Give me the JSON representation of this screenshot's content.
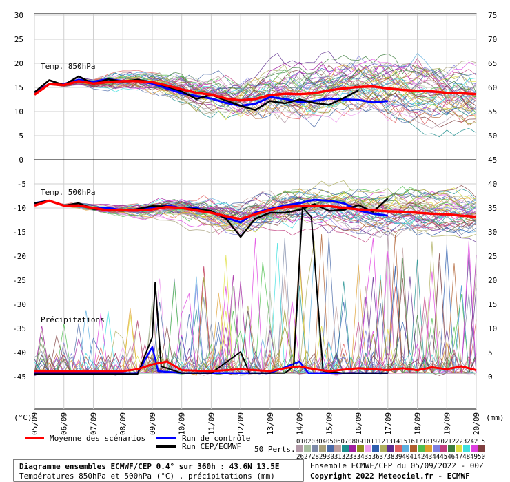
{
  "chart_data": {
    "type": "line",
    "panels": {
      "t850": {
        "label": "Temp. 850hPa",
        "left_ticks": [
          30,
          25,
          20,
          15,
          10,
          5,
          0
        ],
        "right_ticks": [
          75,
          70,
          65,
          60,
          55,
          50,
          45
        ],
        "ylim": [
          0,
          30
        ]
      },
      "t500": {
        "label": "Temp. 500hPa",
        "left_ticks": [
          -5,
          -10,
          -15,
          -20,
          -25,
          -30,
          -35,
          -40,
          -45
        ],
        "right_ticks": [
          40,
          35,
          30,
          25,
          20,
          15,
          10,
          5,
          0
        ],
        "ylim": [
          -45,
          0
        ]
      },
      "precip": {
        "label": "Précipitations",
        "right_ticks": [
          20,
          15,
          10,
          5,
          0
        ],
        "ylim": [
          0,
          25
        ]
      }
    },
    "dates": [
      "05/09",
      "06/09",
      "07/09",
      "08/09",
      "09/09",
      "10/09",
      "11/09",
      "12/09",
      "13/09",
      "14/09",
      "15/09",
      "16/09",
      "17/09",
      "18/09",
      "19/09",
      "20/09"
    ],
    "unit_left": "(°C)",
    "unit_right": "(mm)",
    "series": [
      {
        "name": "Moyenne des scénarios",
        "color": "#ff0000",
        "t850": [
          [
            0,
            13.5
          ],
          [
            0.5,
            15.7
          ],
          [
            1,
            15.5
          ],
          [
            1.5,
            16.3
          ],
          [
            2,
            15.8
          ],
          [
            2.5,
            16.1
          ],
          [
            3,
            16.3
          ],
          [
            3.5,
            16.3
          ],
          [
            4,
            16.1
          ],
          [
            4.5,
            15.4
          ],
          [
            5,
            14.6
          ],
          [
            5.5,
            13.9
          ],
          [
            6,
            13.5
          ],
          [
            6.5,
            12.7
          ],
          [
            7,
            12.3
          ],
          [
            7.5,
            12.6
          ],
          [
            8,
            13.4
          ],
          [
            8.5,
            13.7
          ],
          [
            9,
            13.6
          ],
          [
            9.5,
            13.8
          ],
          [
            10,
            14.4
          ],
          [
            10.5,
            14.8
          ],
          [
            11,
            15.1
          ],
          [
            11.5,
            15.2
          ],
          [
            12,
            14.8
          ],
          [
            12.5,
            14.5
          ],
          [
            13,
            14.3
          ],
          [
            13.5,
            14.2
          ],
          [
            14,
            13.9
          ],
          [
            14.5,
            13.8
          ],
          [
            15,
            13.6
          ]
        ],
        "t500": [
          [
            0,
            -9.5
          ],
          [
            0.5,
            -8.5
          ],
          [
            1,
            -9.5
          ],
          [
            1.5,
            -9.5
          ],
          [
            2,
            -10
          ],
          [
            2.5,
            -10.5
          ],
          [
            3,
            -10.5
          ],
          [
            3.5,
            -10.5
          ],
          [
            4,
            -10.3
          ],
          [
            4.5,
            -9.8
          ],
          [
            5,
            -10
          ],
          [
            5.5,
            -10.5
          ],
          [
            6,
            -11
          ],
          [
            6.5,
            -11.7
          ],
          [
            7,
            -12.3
          ],
          [
            7.5,
            -11.3
          ],
          [
            8,
            -10.4
          ],
          [
            8.5,
            -9.8
          ],
          [
            9,
            -9.6
          ],
          [
            9.5,
            -9.6
          ],
          [
            10,
            -9.6
          ],
          [
            10.5,
            -10
          ],
          [
            11,
            -10.3
          ],
          [
            11.5,
            -10.5
          ],
          [
            12,
            -10.7
          ],
          [
            12.5,
            -10.8
          ],
          [
            13,
            -11
          ],
          [
            13.5,
            -11.2
          ],
          [
            14,
            -11.3
          ],
          [
            14.5,
            -11.6
          ],
          [
            15,
            -11.8
          ]
        ],
        "precip": [
          [
            0,
            0.5
          ],
          [
            2,
            0.5
          ],
          [
            3,
            0.5
          ],
          [
            3.5,
            0.7
          ],
          [
            4,
            1.2
          ],
          [
            4.5,
            1.5
          ],
          [
            5,
            0.6
          ],
          [
            6,
            0.5
          ],
          [
            7,
            0.7
          ],
          [
            8,
            0.5
          ],
          [
            8.5,
            0.8
          ],
          [
            9,
            1
          ],
          [
            9.5,
            0.7
          ],
          [
            10,
            0.5
          ],
          [
            11,
            0.8
          ],
          [
            12,
            0.6
          ],
          [
            12.5,
            0.8
          ],
          [
            13,
            0.6
          ],
          [
            13.5,
            0.9
          ],
          [
            14,
            0.7
          ],
          [
            14.5,
            1
          ],
          [
            15,
            0.6
          ]
        ]
      },
      {
        "name": "Run de contrôle",
        "color": "#0000ff",
        "t850": [
          [
            0,
            14
          ],
          [
            0.5,
            15.7
          ],
          [
            1,
            15.7
          ],
          [
            1.5,
            16.6
          ],
          [
            2,
            16.2
          ],
          [
            2.5,
            16.7
          ],
          [
            3,
            16.3
          ],
          [
            3.5,
            16.4
          ],
          [
            4,
            15.8
          ],
          [
            4.5,
            14.8
          ],
          [
            5,
            13.8
          ],
          [
            5.5,
            13.2
          ],
          [
            6,
            12.7
          ],
          [
            6.5,
            11.8
          ],
          [
            7,
            11.2
          ],
          [
            7.5,
            11.6
          ],
          [
            8,
            13
          ],
          [
            8.5,
            12.6
          ],
          [
            9,
            12
          ],
          [
            9.5,
            12.2
          ],
          [
            10,
            12.7
          ],
          [
            10.5,
            12.5
          ],
          [
            11,
            12.4
          ],
          [
            11.5,
            11.9
          ],
          [
            12,
            12.2
          ]
        ],
        "t500": [
          [
            0,
            -9
          ],
          [
            0.5,
            -8.5
          ],
          [
            1,
            -9.5
          ],
          [
            1.5,
            -9.5
          ],
          [
            2,
            -10
          ],
          [
            2.5,
            -10
          ],
          [
            3,
            -10.5
          ],
          [
            3.5,
            -10.5
          ],
          [
            4,
            -10
          ],
          [
            4.5,
            -9.5
          ],
          [
            5,
            -10
          ],
          [
            5.5,
            -10
          ],
          [
            6,
            -11
          ],
          [
            6.5,
            -12
          ],
          [
            7,
            -13
          ],
          [
            7.5,
            -11
          ],
          [
            8,
            -10.2
          ],
          [
            8.5,
            -9.5
          ],
          [
            9,
            -9
          ],
          [
            9.5,
            -8.3
          ],
          [
            10,
            -8.5
          ],
          [
            10.5,
            -9
          ],
          [
            11,
            -10.5
          ],
          [
            11.5,
            -11.2
          ],
          [
            12,
            -11.6
          ]
        ],
        "precip": [
          [
            0,
            0.3
          ],
          [
            3.5,
            0.3
          ],
          [
            4,
            3
          ],
          [
            4.2,
            0.5
          ],
          [
            5,
            0.3
          ],
          [
            6,
            0.3
          ],
          [
            8,
            0.3
          ],
          [
            9,
            1.5
          ],
          [
            9.3,
            0.3
          ],
          [
            10,
            0.3
          ],
          [
            12,
            0.3
          ]
        ]
      },
      {
        "name": "Run CEP/ECMWF",
        "color": "#000000",
        "t850": [
          [
            0,
            14
          ],
          [
            0.5,
            16.5
          ],
          [
            1,
            15.5
          ],
          [
            1.5,
            17.3
          ],
          [
            2,
            15.7
          ],
          [
            2.5,
            16.7
          ],
          [
            3,
            16.2
          ],
          [
            3.5,
            16.6
          ],
          [
            4,
            16.1
          ],
          [
            4.5,
            15.2
          ],
          [
            5,
            14.2
          ],
          [
            5.5,
            12.6
          ],
          [
            6,
            13.5
          ],
          [
            6.5,
            12.3
          ],
          [
            7,
            11.2
          ],
          [
            7.5,
            10.3
          ],
          [
            8,
            12.2
          ],
          [
            8.5,
            11.7
          ],
          [
            9,
            12.5
          ],
          [
            9.5,
            11.8
          ],
          [
            10,
            11.4
          ],
          [
            10.5,
            12.8
          ],
          [
            11,
            14.4
          ]
        ],
        "t500": [
          [
            0,
            -9
          ],
          [
            0.5,
            -8.5
          ],
          [
            1,
            -9.5
          ],
          [
            1.5,
            -9
          ],
          [
            2,
            -10.2
          ],
          [
            2.5,
            -10.4
          ],
          [
            3,
            -10.6
          ],
          [
            3.5,
            -10.2
          ],
          [
            4,
            -9.6
          ],
          [
            4.5,
            -9.7
          ],
          [
            5,
            -10
          ],
          [
            5.5,
            -10.2
          ],
          [
            6,
            -10.6
          ],
          [
            6.5,
            -12.2
          ],
          [
            7,
            -16
          ],
          [
            7.5,
            -12.2
          ],
          [
            8,
            -11
          ],
          [
            8.5,
            -11
          ],
          [
            9,
            -10.4
          ],
          [
            9.5,
            -9.2
          ],
          [
            10,
            -10.6
          ],
          [
            10.5,
            -10.4
          ],
          [
            11,
            -9.4
          ],
          [
            11.5,
            -10.8
          ],
          [
            12,
            -8
          ]
        ],
        "precip": [
          [
            0,
            0.2
          ],
          [
            3.5,
            0.2
          ],
          [
            4,
            4
          ],
          [
            4.1,
            9.7
          ],
          [
            4.3,
            1
          ],
          [
            5,
            0.3
          ],
          [
            6,
            0.3
          ],
          [
            7,
            2.5
          ],
          [
            7.3,
            0.3
          ],
          [
            8.5,
            0.3
          ],
          [
            8.8,
            1
          ],
          [
            9.1,
            17.5
          ],
          [
            9.4,
            16.5
          ],
          [
            9.8,
            0.5
          ],
          [
            10.5,
            0.3
          ],
          [
            12,
            0.3
          ]
        ]
      }
    ],
    "legend": {
      "mean": "Moyenne des scénarios",
      "control": "Run de contrôle",
      "cep": "Run CEP/ECMWF",
      "perts": "50 Perts.",
      "perts_row1": "0102030405060708091011121314151617181920212223242 5",
      "perts_row2": "26272829303132333435363738394041424344454647484950"
    }
  },
  "footer": {
    "title": "Diagramme ensembles ECMWF/CEP 0.4° sur 360h : 43.6N 13.5E",
    "subtitle": "Températures 850hPa et 500hPa (°C) , précipitations (mm)",
    "ensemble": "Ensemble ECMWF/CEP du 05/09/2022 - 00Z",
    "copyright": "Copyright 2022 Meteociel.fr - ECMWF"
  },
  "pert_colors": [
    "#b39aa8",
    "#a8bfa0",
    "#7d8aa8",
    "#a8a07d",
    "#4a6aa8",
    "#bf9f9f",
    "#1f8f8f",
    "#9f1f9f",
    "#8f8f1f",
    "#ef9fef",
    "#2f5faf",
    "#afaf5f",
    "#5f2f8f",
    "#df5f5f",
    "#5fafdf",
    "#af5f2f",
    "#4fbf4f",
    "#df9f2f",
    "#7f7fdf",
    "#bf3f7f",
    "#3f7f3f",
    "#dfdf3f",
    "#3fdfdf",
    "#df3fdf",
    "#7f3f3f"
  ]
}
